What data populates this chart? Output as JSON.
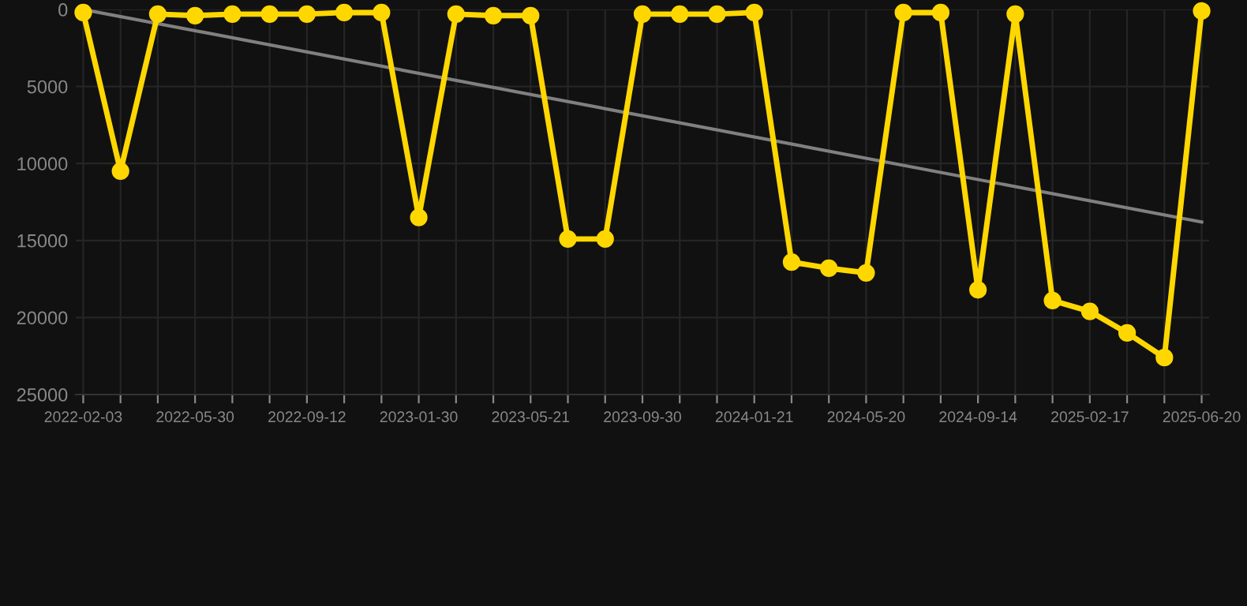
{
  "chart_data": {
    "type": "line",
    "categories": [
      "2022-02-03",
      null,
      null,
      "2022-05-30",
      null,
      null,
      "2022-09-12",
      null,
      null,
      "2023-01-30",
      null,
      null,
      "2023-05-21",
      null,
      null,
      "2023-09-30",
      null,
      null,
      "2024-01-21",
      null,
      null,
      "2024-05-20",
      null,
      null,
      "2024-09-14",
      null,
      null,
      "2025-02-17",
      null,
      null,
      "2025-06-20"
    ],
    "series": [
      {
        "color": "#ffd700",
        "marker": "circle",
        "values": [
          200,
          10500,
          300,
          400,
          300,
          300,
          300,
          200,
          200,
          13500,
          300,
          400,
          400,
          14900,
          14900,
          300,
          300,
          300,
          200,
          16400,
          16800,
          17100,
          200,
          200,
          18200,
          300,
          18900,
          19600,
          21000,
          22600,
          100
        ]
      },
      {
        "color": "#808080",
        "marker": "none",
        "values": [
          0,
          null,
          null,
          null,
          null,
          null,
          null,
          null,
          null,
          null,
          null,
          null,
          null,
          null,
          null,
          null,
          null,
          null,
          null,
          null,
          null,
          null,
          null,
          null,
          null,
          null,
          null,
          null,
          null,
          null,
          13800
        ]
      }
    ],
    "ylim": [
      25000,
      0
    ],
    "yticks": [
      0,
      5000,
      10000,
      15000,
      20000,
      25000
    ],
    "grid": true
  }
}
